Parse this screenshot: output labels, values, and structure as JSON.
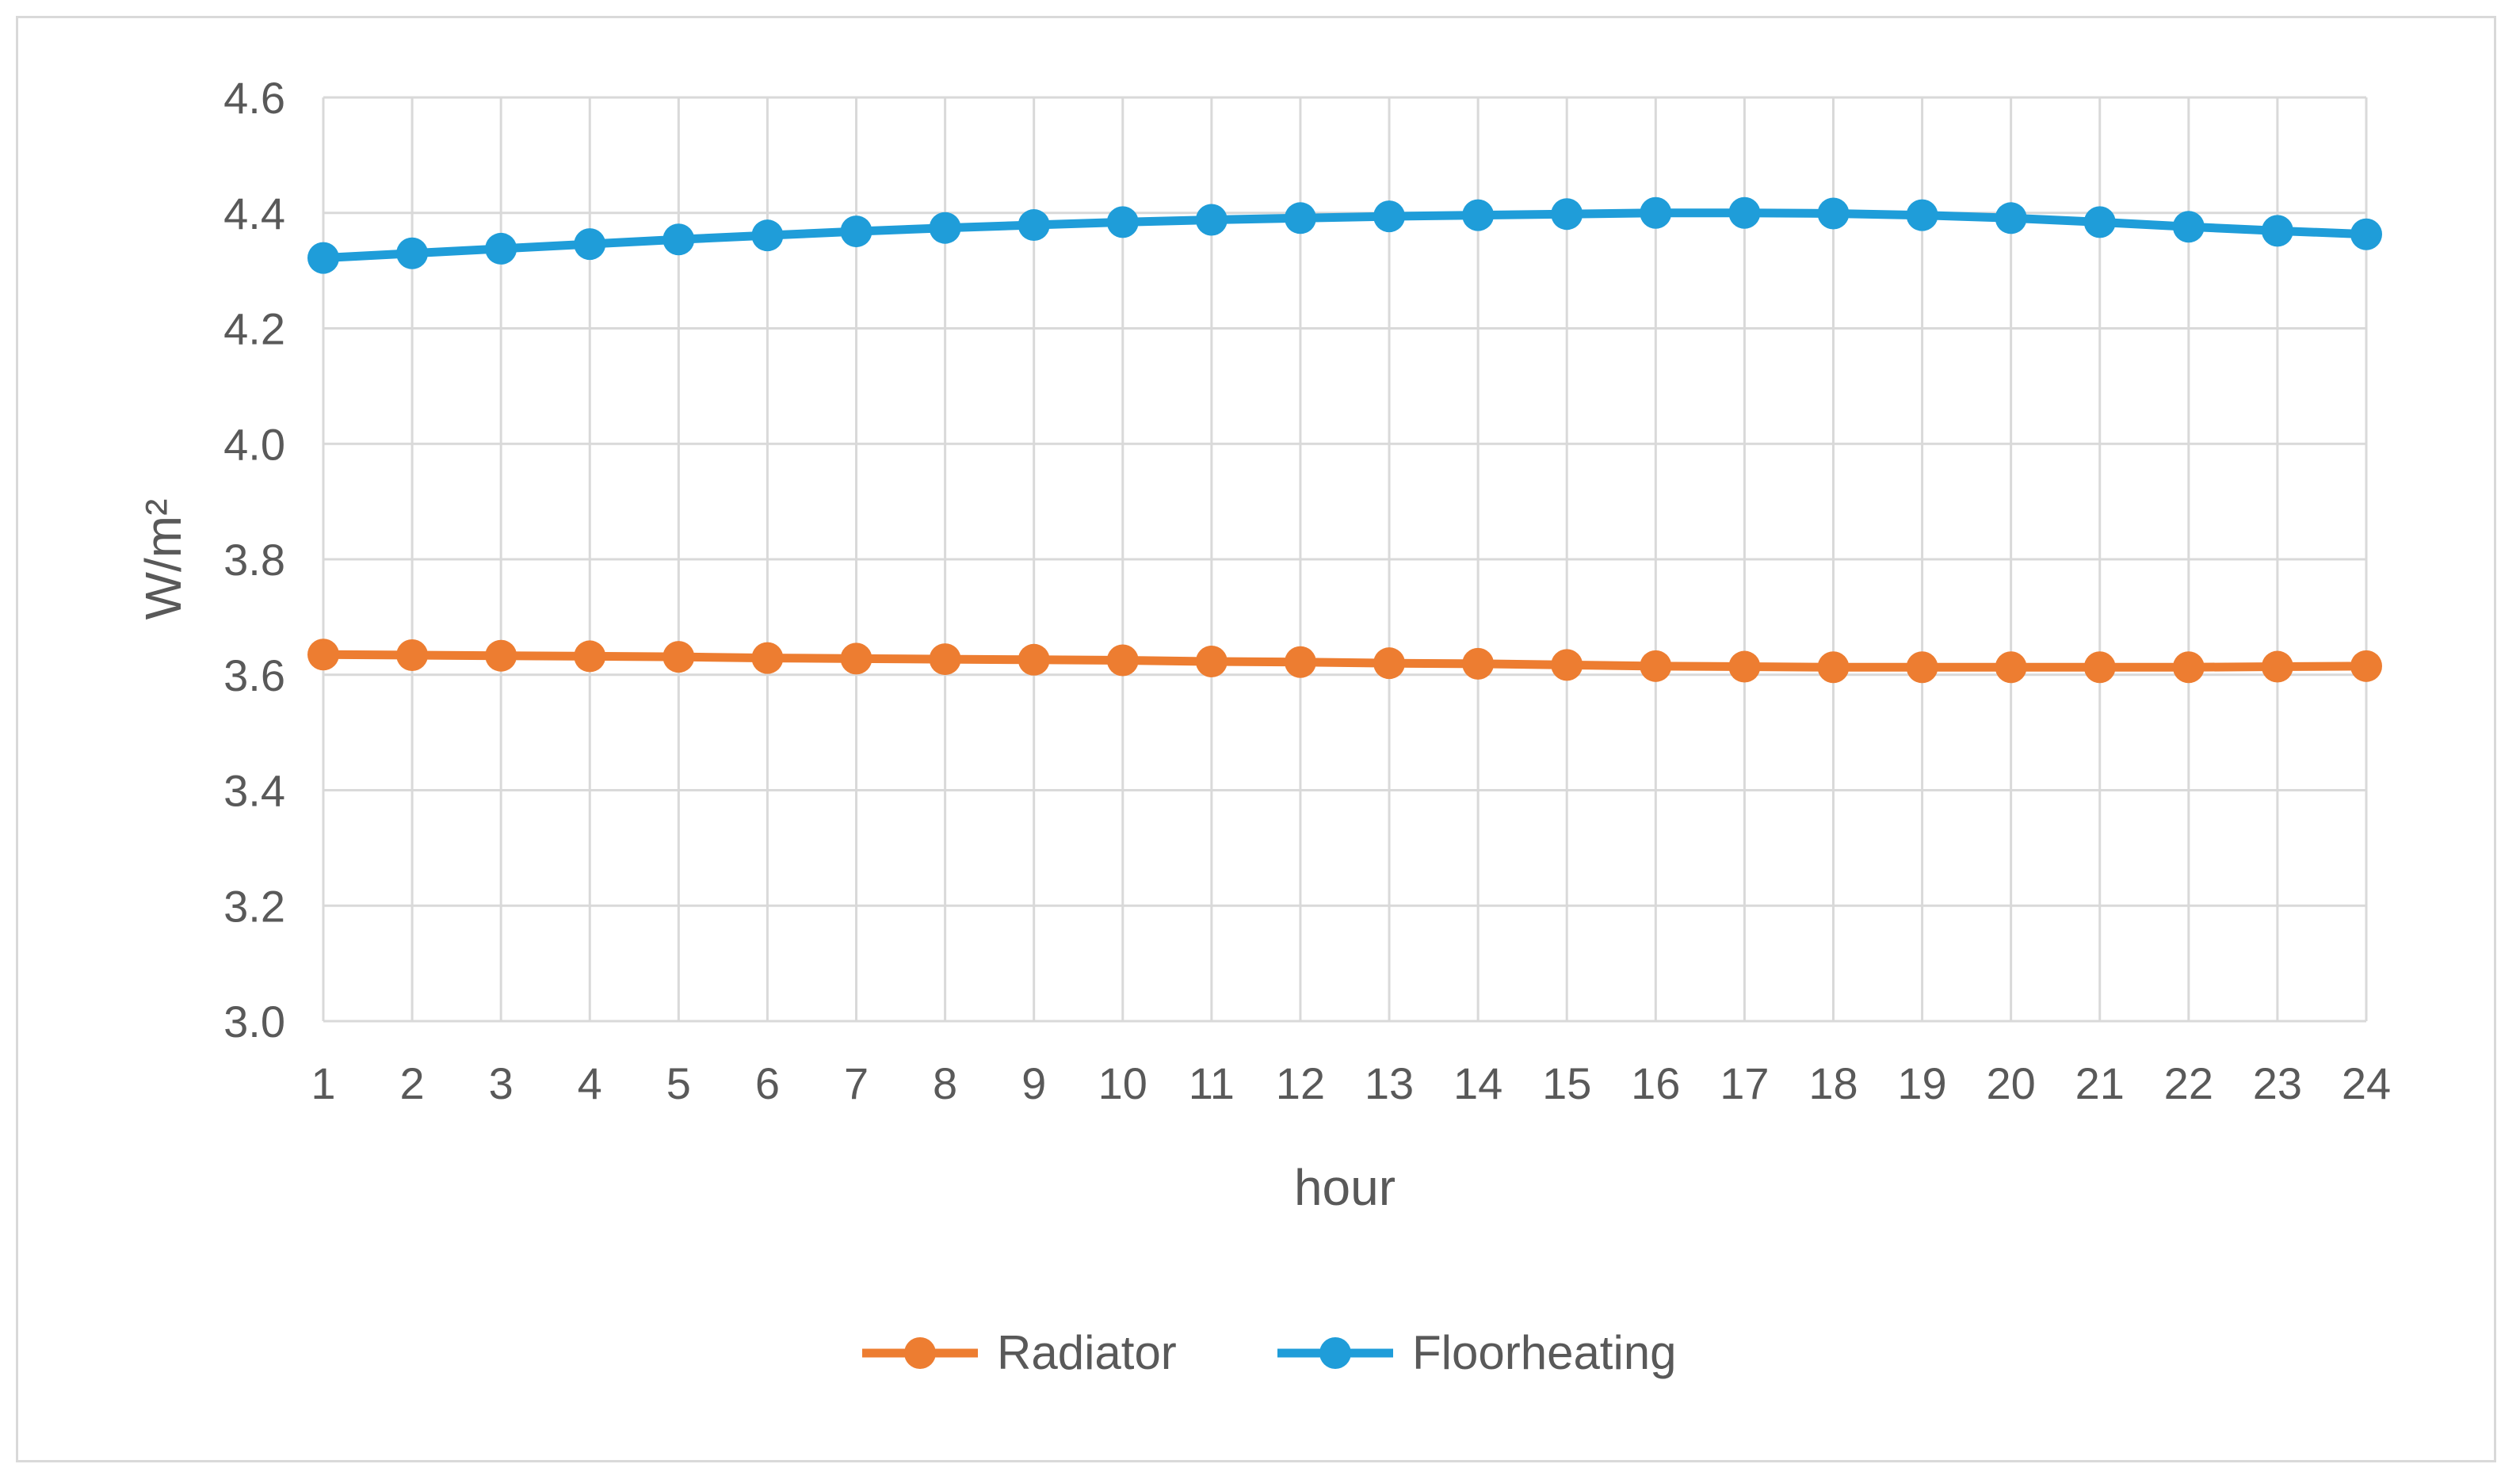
{
  "chart_data": {
    "type": "line",
    "title": "",
    "xlabel": "hour",
    "ylabel": "W/m²",
    "categories": [
      "1",
      "2",
      "3",
      "4",
      "5",
      "6",
      "7",
      "8",
      "9",
      "10",
      "11",
      "12",
      "13",
      "14",
      "15",
      "16",
      "17",
      "18",
      "19",
      "20",
      "21",
      "22",
      "23",
      "24"
    ],
    "ylim": [
      3.0,
      4.6
    ],
    "yticks": [
      "3.0",
      "3.2",
      "3.4",
      "3.6",
      "3.8",
      "4.0",
      "4.2",
      "4.4",
      "4.6"
    ],
    "grid": true,
    "legend_position": "bottom",
    "series": [
      {
        "name": "Radiator",
        "color": "#ED7D31",
        "values": [
          3.635,
          3.634,
          3.633,
          3.632,
          3.631,
          3.629,
          3.628,
          3.627,
          3.626,
          3.625,
          3.623,
          3.622,
          3.62,
          3.619,
          3.617,
          3.615,
          3.614,
          3.613,
          3.613,
          3.613,
          3.613,
          3.613,
          3.614,
          3.615
        ]
      },
      {
        "name": "Floorheating",
        "color": "#1F9DD9",
        "values": [
          4.322,
          4.33,
          4.338,
          4.346,
          4.354,
          4.361,
          4.368,
          4.374,
          4.379,
          4.384,
          4.388,
          4.391,
          4.394,
          4.396,
          4.398,
          4.4,
          4.4,
          4.399,
          4.396,
          4.391,
          4.384,
          4.376,
          4.369,
          4.363
        ]
      }
    ]
  }
}
